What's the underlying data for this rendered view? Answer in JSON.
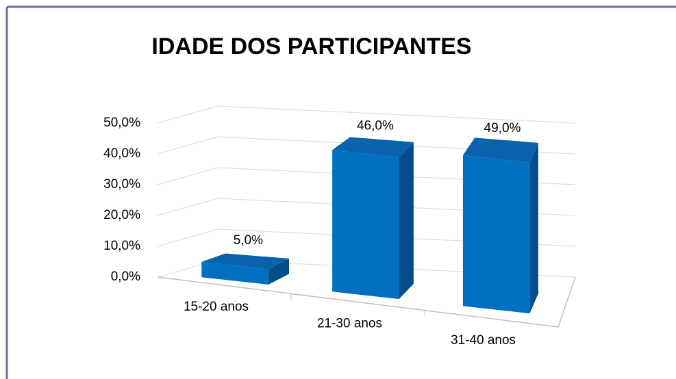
{
  "chart_data": {
    "type": "bar3d",
    "title": "IDADE DOS PARTICIPANTES",
    "categories": [
      "15-20 anos",
      "21-30 anos",
      "31-40 anos"
    ],
    "values": [
      5,
      46,
      49
    ],
    "value_labels": [
      "5,0%",
      "46,0%",
      "49,0%"
    ],
    "color": "#0070c0",
    "ylim": [
      0,
      50
    ],
    "yticks": [
      {
        "value": 0,
        "label": "0,0%"
      },
      {
        "value": 10,
        "label": "10,0%"
      },
      {
        "value": 20,
        "label": "20,0%"
      },
      {
        "value": 30,
        "label": "30,0%"
      },
      {
        "value": 40,
        "label": "40,0%"
      },
      {
        "value": 50,
        "label": "50,0%"
      }
    ],
    "grid": true
  }
}
